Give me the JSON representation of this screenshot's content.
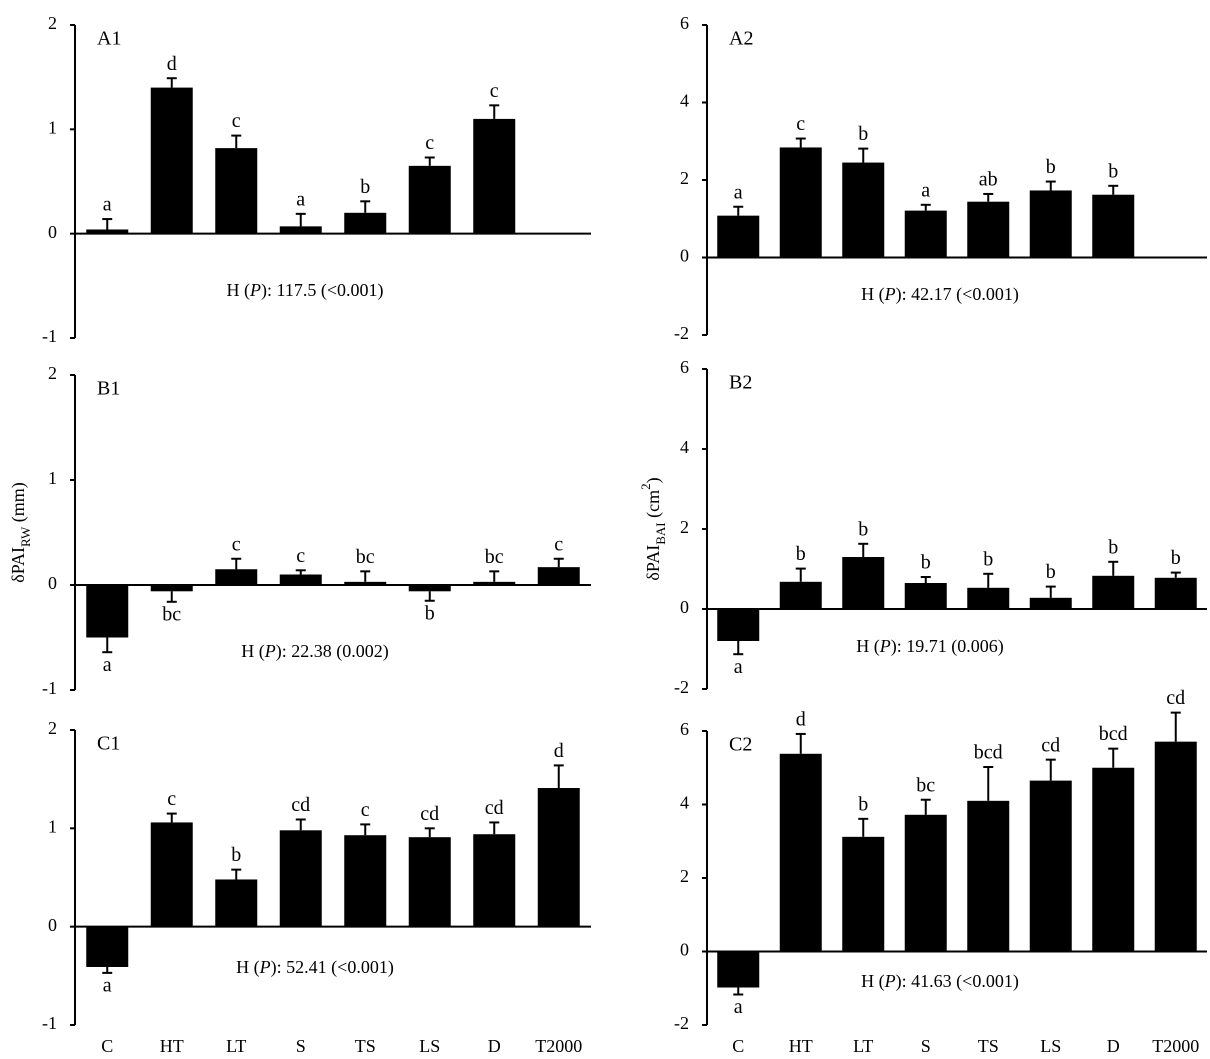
{
  "chart_data": [
    {
      "type": "bar",
      "panel": "A1",
      "color": "#000000",
      "ylim": [
        -1,
        2
      ],
      "yticks": [
        -1,
        0,
        1,
        2
      ],
      "values": [
        0.04,
        1.4,
        0.82,
        0.07,
        0.2,
        0.65,
        1.1,
        null
      ],
      "errors": [
        0.1,
        0.09,
        0.12,
        0.12,
        0.11,
        0.08,
        0.13,
        null
      ],
      "letters": [
        "a",
        "d",
        "c",
        "a",
        "b",
        "c",
        "c",
        null
      ],
      "stat": [
        "H (",
        "P",
        "): 117.5 (<0.001)"
      ]
    },
    {
      "type": "bar",
      "panel": "A2",
      "color": "#000000",
      "ylim": [
        -2,
        6
      ],
      "yticks": [
        -2,
        0,
        2,
        4,
        6
      ],
      "values": [
        1.08,
        2.84,
        2.45,
        1.21,
        1.44,
        1.73,
        1.62,
        null
      ],
      "errors": [
        0.23,
        0.23,
        0.36,
        0.15,
        0.2,
        0.23,
        0.23,
        null
      ],
      "letters": [
        "a",
        "c",
        "b",
        "a",
        "ab",
        "b",
        "b",
        null
      ],
      "stat": [
        "H (",
        "P",
        "): 42.17 (<0.001)"
      ]
    },
    {
      "type": "bar",
      "panel": "B1",
      "color": "#000000",
      "ylim": [
        -1,
        2
      ],
      "yticks": [
        -1,
        0,
        1,
        2
      ],
      "ylabel": {
        "main": "δPAI",
        "sub": "RW",
        "unit": " (mm)"
      },
      "values": [
        -0.5,
        -0.06,
        0.15,
        0.1,
        0.03,
        -0.06,
        0.03,
        0.17
      ],
      "errors": [
        0.14,
        0.1,
        0.1,
        0.04,
        0.1,
        0.09,
        0.1,
        0.08
      ],
      "letters": [
        "a",
        "bc",
        "c",
        "c",
        "bc",
        "b",
        "bc",
        "c"
      ],
      "stat": [
        "H (",
        "P",
        "): 22.38 (0.002)"
      ]
    },
    {
      "type": "bar",
      "panel": "B2",
      "color": "#000000",
      "ylim": [
        -2,
        6
      ],
      "yticks": [
        -2,
        0,
        2,
        4,
        6
      ],
      "ylabel": {
        "main": "δPAI",
        "sub": "BAI",
        "unit": " (cm",
        "sup": "2",
        "end": ")"
      },
      "values": [
        -0.8,
        0.68,
        1.3,
        0.65,
        0.53,
        0.28,
        0.83,
        0.78
      ],
      "errors": [
        0.33,
        0.33,
        0.33,
        0.15,
        0.35,
        0.28,
        0.35,
        0.13
      ],
      "letters": [
        "a",
        "b",
        "b",
        "b",
        "b",
        "b",
        "b",
        "b"
      ],
      "stat": [
        "H (",
        "P",
        "): 19.71 (0.006)"
      ]
    },
    {
      "type": "bar",
      "panel": "C1",
      "color": "#000000",
      "ylim": [
        -1,
        2
      ],
      "yticks": [
        -1,
        0,
        1,
        2
      ],
      "categories": [
        "C",
        "HT",
        "LT",
        "S",
        "TS",
        "LS",
        "D",
        "T2000"
      ],
      "values": [
        -0.41,
        1.06,
        0.48,
        0.98,
        0.93,
        0.91,
        0.94,
        1.41
      ],
      "errors": [
        0.06,
        0.09,
        0.1,
        0.11,
        0.11,
        0.09,
        0.12,
        0.23
      ],
      "letters": [
        "a",
        "c",
        "b",
        "cd",
        "c",
        "cd",
        "cd",
        "d"
      ],
      "stat": [
        "H (",
        "P",
        "): 52.41 (<0.001)"
      ]
    },
    {
      "type": "bar",
      "panel": "C2",
      "color": "#000000",
      "ylim": [
        -2,
        6
      ],
      "yticks": [
        -2,
        0,
        2,
        4,
        6
      ],
      "categories": [
        "C",
        "HT",
        "LT",
        "S",
        "TS",
        "LS",
        "D",
        "T2000"
      ],
      "values": [
        -0.98,
        5.38,
        3.12,
        3.72,
        4.1,
        4.65,
        5.0,
        5.71
      ],
      "errors": [
        0.19,
        0.54,
        0.49,
        0.41,
        0.92,
        0.57,
        0.52,
        0.79
      ],
      "letters": [
        "a",
        "d",
        "b",
        "bc",
        "bcd",
        "cd",
        "bcd",
        "cd"
      ],
      "stat": [
        "H (",
        "P",
        "): 41.63 (<0.001)"
      ]
    }
  ]
}
